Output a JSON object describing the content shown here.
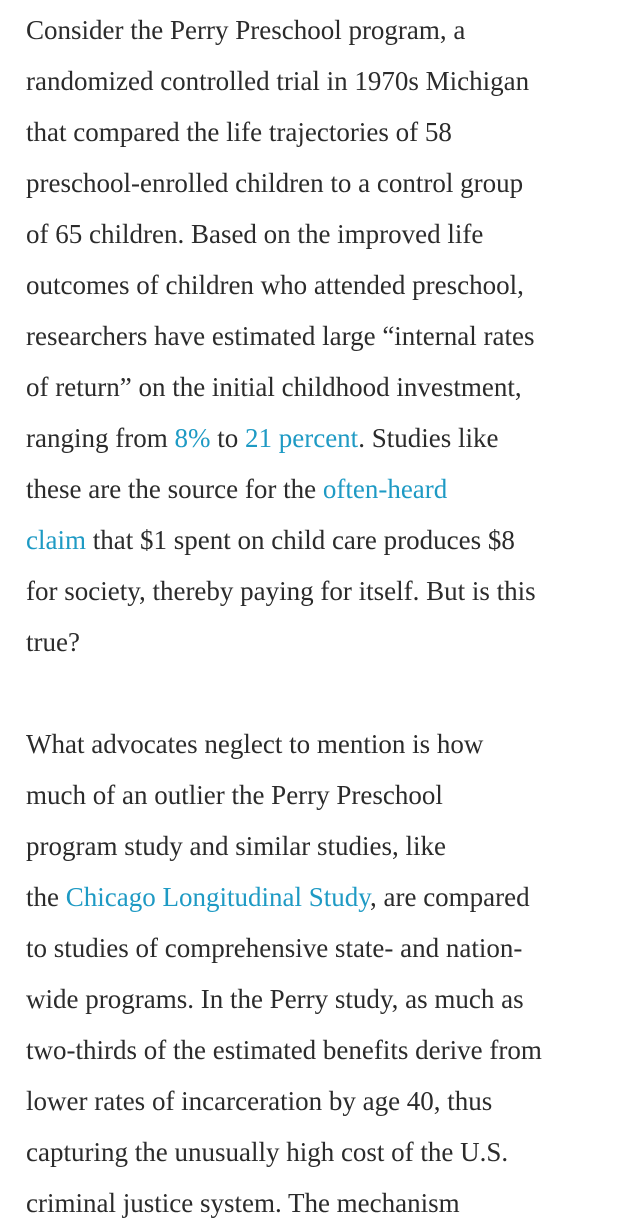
{
  "article": {
    "paragraphs": [
      {
        "lines": [
          [
            {
              "text": "Consider the Perry Preschool program, a"
            }
          ],
          [
            {
              "text": "randomized controlled trial in 1970s Michigan"
            }
          ],
          [
            {
              "text": "that compared the life trajectories of 58"
            }
          ],
          [
            {
              "text": "preschool-enrolled children to a control group"
            }
          ],
          [
            {
              "text": "of 65 children. Based on the improved life"
            }
          ],
          [
            {
              "text": "outcomes of children who attended preschool,"
            }
          ],
          [
            {
              "text": "researchers have estimated large “internal rates"
            }
          ],
          [
            {
              "text": "of return” on the initial childhood investment,"
            }
          ],
          [
            {
              "text": "ranging from "
            },
            {
              "text": "8%",
              "link": true
            },
            {
              "text": " to "
            },
            {
              "text": "21 percent",
              "link": true
            },
            {
              "text": ". Studies like"
            }
          ],
          [
            {
              "text": "these are the source for the "
            },
            {
              "text": "often-heard",
              "link": true
            }
          ],
          [
            {
              "text": "claim",
              "link": true
            },
            {
              "text": " that $1 spent on child care produces $8"
            }
          ],
          [
            {
              "text": "for society, thereby paying for itself. But is this"
            }
          ],
          [
            {
              "text": "true?"
            }
          ]
        ]
      },
      {
        "lines": [
          [
            {
              "text": "What advocates neglect to mention is how"
            }
          ],
          [
            {
              "text": "much of an outlier the Perry Preschool"
            }
          ],
          [
            {
              "text": "program study and similar studies, like"
            }
          ],
          [
            {
              "text": "the "
            },
            {
              "text": "Chicago Longitudinal Study",
              "link": true
            },
            {
              "text": ", are compared"
            }
          ],
          [
            {
              "text": "to studies of comprehensive state- and nation-"
            }
          ],
          [
            {
              "text": "wide programs. In the Perry study, as much as"
            }
          ],
          [
            {
              "text": "two-thirds of the estimated benefits derive from"
            }
          ],
          [
            {
              "text": "lower rates of incarceration by age 40, thus"
            }
          ],
          [
            {
              "text": "capturing the unusually high cost of the U.S."
            }
          ],
          [
            {
              "text": "criminal justice system. The mechanism"
            }
          ]
        ]
      }
    ]
  },
  "colors": {
    "text": "#2b2b2b",
    "link": "#1e9ac4",
    "background": "#ffffff"
  }
}
